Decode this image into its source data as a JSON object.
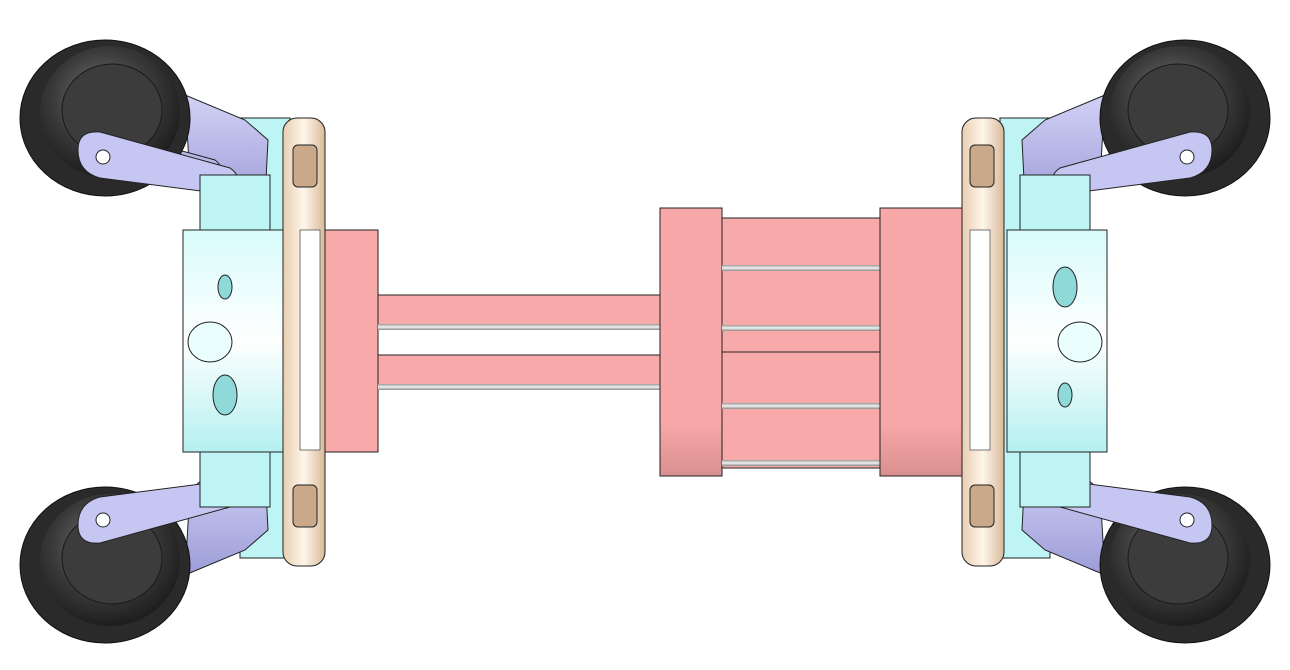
{
  "scene": {
    "description_visible_text": "",
    "colors": {
      "background": "#ffffff",
      "wheel_tire": "#2f2f2f",
      "wheel_highlight": "#6a6a6a",
      "arm": "#b9b9ee",
      "arm_dark": "#8d8dcc",
      "body": "#bff4f4",
      "body_dark": "#8fd9d9",
      "flange": "#f2dcc4",
      "flange_dark": "#c9a98a",
      "actuator": "#f9aaaa",
      "actuator_dark": "#d98585",
      "rod": "#c8c8c8",
      "outline": "#222222"
    }
  }
}
